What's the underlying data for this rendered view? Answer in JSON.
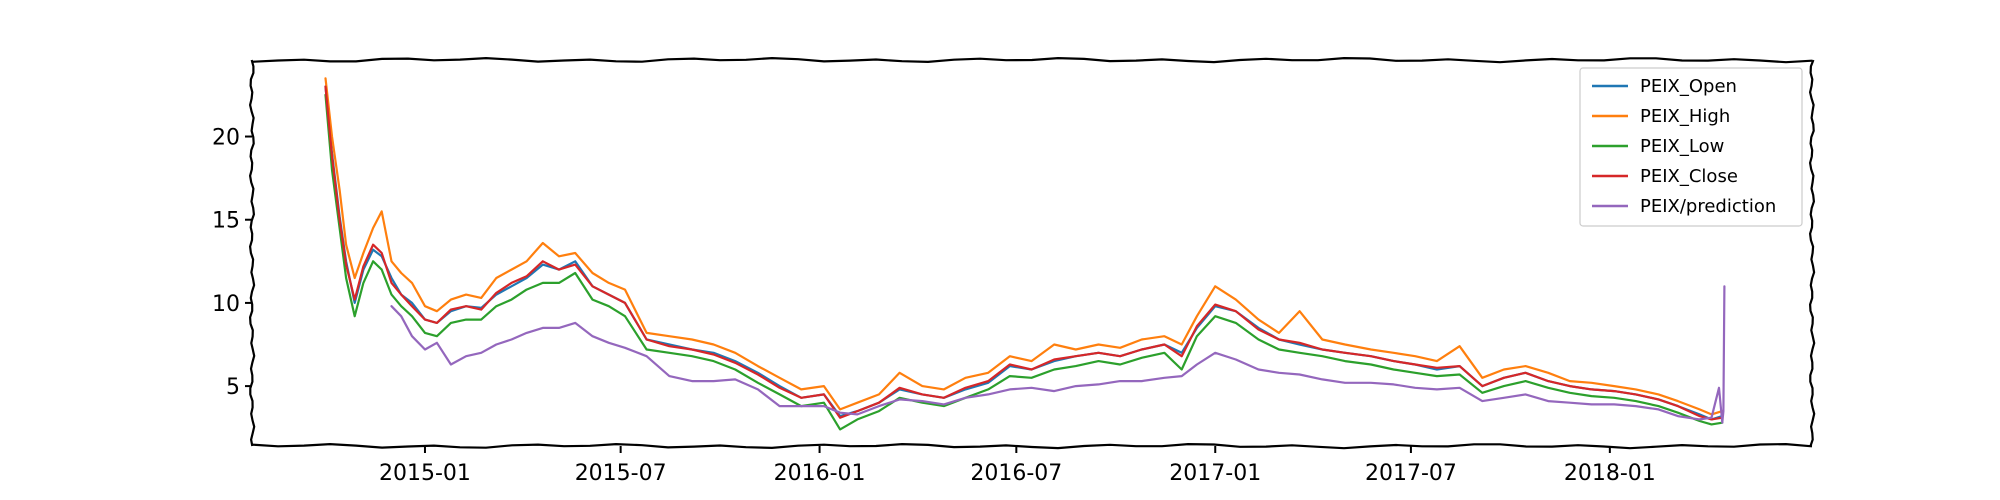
{
  "chart_data": {
    "type": "line",
    "title": "",
    "xlabel": "",
    "ylabel": "",
    "xlim": [
      "2014-07-25",
      "2018-07-07"
    ],
    "ylim": [
      1.4,
      24.6
    ],
    "yticks": [
      5,
      10,
      15,
      20
    ],
    "xticks": [
      "2015-01",
      "2015-07",
      "2016-01",
      "2016-07",
      "2017-01",
      "2017-07",
      "2018-01"
    ],
    "grid": false,
    "legend_position": "top-right",
    "style": "xkcd-sketch",
    "colors": {
      "PEIX_Open": "#1f77b4",
      "PEIX_High": "#ff7f0e",
      "PEIX_Low": "#2ca02c",
      "PEIX_Close": "#d62728",
      "PEIX/prediction": "#9467bd"
    },
    "series": [
      {
        "name": "PEIX_Open",
        "x": [
          "2014-10-01",
          "2014-10-07",
          "2014-10-14",
          "2014-10-20",
          "2014-10-28",
          "2014-11-05",
          "2014-11-14",
          "2014-11-22",
          "2014-12-01",
          "2014-12-10",
          "2014-12-20",
          "2015-01-01",
          "2015-01-12",
          "2015-01-25",
          "2015-02-08",
          "2015-02-22",
          "2015-03-08",
          "2015-03-22",
          "2015-04-05",
          "2015-04-20",
          "2015-05-05",
          "2015-05-20",
          "2015-06-05",
          "2015-06-20",
          "2015-07-05",
          "2015-07-25",
          "2015-08-15",
          "2015-09-05",
          "2015-09-25",
          "2015-10-15",
          "2015-11-05",
          "2015-11-25",
          "2015-12-15",
          "2016-01-05",
          "2016-01-20",
          "2016-02-05",
          "2016-02-25",
          "2016-03-15",
          "2016-04-05",
          "2016-04-25",
          "2016-05-15",
          "2016-06-05",
          "2016-06-25",
          "2016-07-15",
          "2016-08-05",
          "2016-08-25",
          "2016-09-15",
          "2016-10-05",
          "2016-10-25",
          "2016-11-15",
          "2016-12-01",
          "2016-12-15",
          "2017-01-01",
          "2017-01-20",
          "2017-02-10",
          "2017-03-01",
          "2017-03-20",
          "2017-04-10",
          "2017-05-01",
          "2017-05-25",
          "2017-06-15",
          "2017-07-05",
          "2017-07-25",
          "2017-08-15",
          "2017-09-05",
          "2017-09-25",
          "2017-10-15",
          "2017-11-05",
          "2017-11-25",
          "2017-12-15",
          "2018-01-05",
          "2018-01-25",
          "2018-02-15",
          "2018-03-05",
          "2018-03-25",
          "2018-04-05",
          "2018-04-15"
        ],
        "values": [
          23.0,
          19.0,
          15.2,
          12.5,
          10.0,
          12.0,
          13.2,
          12.8,
          11.5,
          10.5,
          10.0,
          9.0,
          8.8,
          9.5,
          9.8,
          9.7,
          10.5,
          11.0,
          11.5,
          12.3,
          12.0,
          12.5,
          11.0,
          10.5,
          10.0,
          7.8,
          7.5,
          7.2,
          7.0,
          6.5,
          5.8,
          5.0,
          4.3,
          4.5,
          3.2,
          3.5,
          4.0,
          4.8,
          4.5,
          4.3,
          4.8,
          5.2,
          6.2,
          6.0,
          6.5,
          6.8,
          7.0,
          6.8,
          7.2,
          7.5,
          7.0,
          8.5,
          9.8,
          9.5,
          8.5,
          7.8,
          7.5,
          7.2,
          7.0,
          6.8,
          6.5,
          6.3,
          6.0,
          6.2,
          5.0,
          5.5,
          5.8,
          5.3,
          5.0,
          4.8,
          4.7,
          4.5,
          4.2,
          3.8,
          3.3,
          3.0,
          3.2
        ]
      },
      {
        "name": "PEIX_High",
        "x": [
          "2014-10-01",
          "2014-10-07",
          "2014-10-14",
          "2014-10-20",
          "2014-10-28",
          "2014-11-05",
          "2014-11-14",
          "2014-11-22",
          "2014-12-01",
          "2014-12-10",
          "2014-12-20",
          "2015-01-01",
          "2015-01-12",
          "2015-01-25",
          "2015-02-08",
          "2015-02-22",
          "2015-03-08",
          "2015-03-22",
          "2015-04-05",
          "2015-04-20",
          "2015-05-05",
          "2015-05-20",
          "2015-06-05",
          "2015-06-20",
          "2015-07-05",
          "2015-07-25",
          "2015-08-15",
          "2015-09-05",
          "2015-09-25",
          "2015-10-15",
          "2015-11-05",
          "2015-11-25",
          "2015-12-15",
          "2016-01-05",
          "2016-01-20",
          "2016-02-05",
          "2016-02-25",
          "2016-03-15",
          "2016-04-05",
          "2016-04-25",
          "2016-05-15",
          "2016-06-05",
          "2016-06-25",
          "2016-07-15",
          "2016-08-05",
          "2016-08-25",
          "2016-09-15",
          "2016-10-05",
          "2016-10-25",
          "2016-11-15",
          "2016-12-01",
          "2016-12-15",
          "2017-01-01",
          "2017-01-20",
          "2017-02-10",
          "2017-03-01",
          "2017-03-20",
          "2017-04-10",
          "2017-05-01",
          "2017-05-25",
          "2017-06-15",
          "2017-07-05",
          "2017-07-25",
          "2017-08-15",
          "2017-09-05",
          "2017-09-25",
          "2017-10-15",
          "2017-11-05",
          "2017-11-25",
          "2017-12-15",
          "2018-01-05",
          "2018-01-25",
          "2018-02-15",
          "2018-03-05",
          "2018-03-25",
          "2018-04-05",
          "2018-04-15"
        ],
        "values": [
          23.5,
          20.0,
          16.8,
          13.5,
          11.5,
          13.0,
          14.5,
          15.5,
          12.5,
          11.8,
          11.2,
          9.8,
          9.5,
          10.2,
          10.5,
          10.3,
          11.5,
          12.0,
          12.5,
          13.6,
          12.8,
          13.0,
          11.8,
          11.2,
          10.8,
          8.2,
          8.0,
          7.8,
          7.5,
          7.0,
          6.2,
          5.5,
          4.8,
          5.0,
          3.6,
          4.0,
          4.5,
          5.8,
          5.0,
          4.8,
          5.5,
          5.8,
          6.8,
          6.5,
          7.5,
          7.2,
          7.5,
          7.3,
          7.8,
          8.0,
          7.5,
          9.2,
          11.0,
          10.2,
          9.0,
          8.2,
          9.5,
          7.8,
          7.5,
          7.2,
          7.0,
          6.8,
          6.5,
          7.4,
          5.5,
          6.0,
          6.2,
          5.8,
          5.3,
          5.2,
          5.0,
          4.8,
          4.5,
          4.1,
          3.6,
          3.3,
          3.5
        ]
      },
      {
        "name": "PEIX_Low",
        "x": [
          "2014-10-01",
          "2014-10-07",
          "2014-10-14",
          "2014-10-20",
          "2014-10-28",
          "2014-11-05",
          "2014-11-14",
          "2014-11-22",
          "2014-12-01",
          "2014-12-10",
          "2014-12-20",
          "2015-01-01",
          "2015-01-12",
          "2015-01-25",
          "2015-02-08",
          "2015-02-22",
          "2015-03-08",
          "2015-03-22",
          "2015-04-05",
          "2015-04-20",
          "2015-05-05",
          "2015-05-20",
          "2015-06-05",
          "2015-06-20",
          "2015-07-05",
          "2015-07-25",
          "2015-08-15",
          "2015-09-05",
          "2015-09-25",
          "2015-10-15",
          "2015-11-05",
          "2015-11-25",
          "2015-12-15",
          "2016-01-05",
          "2016-01-20",
          "2016-02-05",
          "2016-02-25",
          "2016-03-15",
          "2016-04-05",
          "2016-04-25",
          "2016-05-15",
          "2016-06-05",
          "2016-06-25",
          "2016-07-15",
          "2016-08-05",
          "2016-08-25",
          "2016-09-15",
          "2016-10-05",
          "2016-10-25",
          "2016-11-15",
          "2016-12-01",
          "2016-12-15",
          "2017-01-01",
          "2017-01-20",
          "2017-02-10",
          "2017-03-01",
          "2017-03-20",
          "2017-04-10",
          "2017-05-01",
          "2017-05-25",
          "2017-06-15",
          "2017-07-05",
          "2017-07-25",
          "2017-08-15",
          "2017-09-05",
          "2017-09-25",
          "2017-10-15",
          "2017-11-05",
          "2017-11-25",
          "2017-12-15",
          "2018-01-05",
          "2018-01-25",
          "2018-02-15",
          "2018-03-05",
          "2018-03-25",
          "2018-04-05",
          "2018-04-15"
        ],
        "values": [
          22.5,
          18.0,
          14.5,
          11.5,
          9.2,
          11.2,
          12.5,
          12.0,
          10.5,
          9.8,
          9.2,
          8.2,
          8.0,
          8.8,
          9.0,
          9.0,
          9.8,
          10.2,
          10.8,
          11.2,
          11.2,
          11.8,
          10.2,
          9.8,
          9.2,
          7.2,
          7.0,
          6.8,
          6.5,
          6.0,
          5.2,
          4.5,
          3.8,
          4.0,
          2.4,
          3.0,
          3.5,
          4.3,
          4.0,
          3.8,
          4.3,
          4.8,
          5.6,
          5.5,
          6.0,
          6.2,
          6.5,
          6.3,
          6.7,
          7.0,
          6.0,
          8.0,
          9.2,
          8.8,
          7.8,
          7.2,
          7.0,
          6.8,
          6.5,
          6.3,
          6.0,
          5.8,
          5.6,
          5.7,
          4.6,
          5.0,
          5.3,
          4.9,
          4.6,
          4.4,
          4.3,
          4.1,
          3.8,
          3.4,
          2.9,
          2.7,
          2.8
        ]
      },
      {
        "name": "PEIX_Close",
        "x": [
          "2014-10-01",
          "2014-10-07",
          "2014-10-14",
          "2014-10-20",
          "2014-10-28",
          "2014-11-05",
          "2014-11-14",
          "2014-11-22",
          "2014-12-01",
          "2014-12-10",
          "2014-12-20",
          "2015-01-01",
          "2015-01-12",
          "2015-01-25",
          "2015-02-08",
          "2015-02-22",
          "2015-03-08",
          "2015-03-22",
          "2015-04-05",
          "2015-04-20",
          "2015-05-05",
          "2015-05-20",
          "2015-06-05",
          "2015-06-20",
          "2015-07-05",
          "2015-07-25",
          "2015-08-15",
          "2015-09-05",
          "2015-09-25",
          "2015-10-15",
          "2015-11-05",
          "2015-11-25",
          "2015-12-15",
          "2016-01-05",
          "2016-01-20",
          "2016-02-05",
          "2016-02-25",
          "2016-03-15",
          "2016-04-05",
          "2016-04-25",
          "2016-05-15",
          "2016-06-05",
          "2016-06-25",
          "2016-07-15",
          "2016-08-05",
          "2016-08-25",
          "2016-09-15",
          "2016-10-05",
          "2016-10-25",
          "2016-11-15",
          "2016-12-01",
          "2016-12-15",
          "2017-01-01",
          "2017-01-20",
          "2017-02-10",
          "2017-03-01",
          "2017-03-20",
          "2017-04-10",
          "2017-05-01",
          "2017-05-25",
          "2017-06-15",
          "2017-07-05",
          "2017-07-25",
          "2017-08-15",
          "2017-09-05",
          "2017-09-25",
          "2017-10-15",
          "2017-11-05",
          "2017-11-25",
          "2017-12-15",
          "2018-01-05",
          "2018-01-25",
          "2018-02-15",
          "2018-03-05",
          "2018-03-25",
          "2018-04-05",
          "2018-04-15"
        ],
        "values": [
          23.0,
          18.8,
          15.0,
          12.3,
          10.2,
          12.2,
          13.5,
          13.0,
          11.2,
          10.5,
          9.8,
          9.0,
          8.8,
          9.6,
          9.8,
          9.6,
          10.6,
          11.2,
          11.6,
          12.5,
          12.0,
          12.3,
          11.0,
          10.5,
          10.0,
          7.8,
          7.4,
          7.2,
          6.9,
          6.4,
          5.7,
          4.9,
          4.3,
          4.5,
          3.1,
          3.5,
          4.0,
          4.9,
          4.5,
          4.3,
          4.9,
          5.3,
          6.3,
          6.0,
          6.6,
          6.8,
          7.0,
          6.8,
          7.2,
          7.5,
          6.8,
          8.6,
          9.9,
          9.5,
          8.4,
          7.8,
          7.6,
          7.2,
          7.0,
          6.8,
          6.5,
          6.3,
          6.1,
          6.2,
          5.0,
          5.5,
          5.8,
          5.3,
          5.0,
          4.8,
          4.7,
          4.5,
          4.2,
          3.8,
          3.2,
          3.0,
          3.1
        ]
      },
      {
        "name": "PEIX/prediction",
        "x": [
          "2014-12-01",
          "2014-12-10",
          "2014-12-20",
          "2015-01-01",
          "2015-01-12",
          "2015-01-25",
          "2015-02-08",
          "2015-02-22",
          "2015-03-08",
          "2015-03-22",
          "2015-04-05",
          "2015-04-20",
          "2015-05-05",
          "2015-05-20",
          "2015-06-05",
          "2015-06-20",
          "2015-07-05",
          "2015-07-25",
          "2015-08-15",
          "2015-09-05",
          "2015-09-25",
          "2015-10-15",
          "2015-11-05",
          "2015-11-25",
          "2015-12-15",
          "2016-01-05",
          "2016-01-20",
          "2016-02-05",
          "2016-02-25",
          "2016-03-15",
          "2016-04-05",
          "2016-04-25",
          "2016-05-15",
          "2016-06-05",
          "2016-06-25",
          "2016-07-15",
          "2016-08-05",
          "2016-08-25",
          "2016-09-15",
          "2016-10-05",
          "2016-10-25",
          "2016-11-15",
          "2016-12-01",
          "2016-12-15",
          "2017-01-01",
          "2017-01-20",
          "2017-02-10",
          "2017-03-01",
          "2017-03-20",
          "2017-04-10",
          "2017-05-01",
          "2017-05-25",
          "2017-06-15",
          "2017-07-05",
          "2017-07-25",
          "2017-08-15",
          "2017-09-05",
          "2017-09-25",
          "2017-10-15",
          "2017-11-05",
          "2017-11-25",
          "2017-12-15",
          "2018-01-05",
          "2018-01-25",
          "2018-02-15",
          "2018-03-05",
          "2018-03-25",
          "2018-04-05",
          "2018-04-12",
          "2018-04-15",
          "2018-04-16",
          "2018-04-17"
        ],
        "values": [
          9.8,
          9.2,
          8.0,
          7.2,
          7.6,
          6.3,
          6.8,
          7.0,
          7.5,
          7.8,
          8.2,
          8.5,
          8.5,
          8.8,
          8.0,
          7.6,
          7.3,
          6.8,
          5.6,
          5.3,
          5.3,
          5.4,
          4.8,
          3.8,
          3.8,
          3.8,
          3.4,
          3.3,
          3.8,
          4.2,
          4.1,
          3.9,
          4.3,
          4.5,
          4.8,
          4.9,
          4.7,
          5.0,
          5.1,
          5.3,
          5.3,
          5.5,
          5.6,
          6.3,
          7.0,
          6.6,
          6.0,
          5.8,
          5.7,
          5.4,
          5.2,
          5.2,
          5.1,
          4.9,
          4.8,
          4.9,
          4.1,
          4.3,
          4.5,
          4.1,
          4.0,
          3.9,
          3.9,
          3.8,
          3.6,
          3.2,
          3.0,
          3.1,
          4.9,
          2.8,
          3.5,
          11.0
        ]
      }
    ]
  }
}
